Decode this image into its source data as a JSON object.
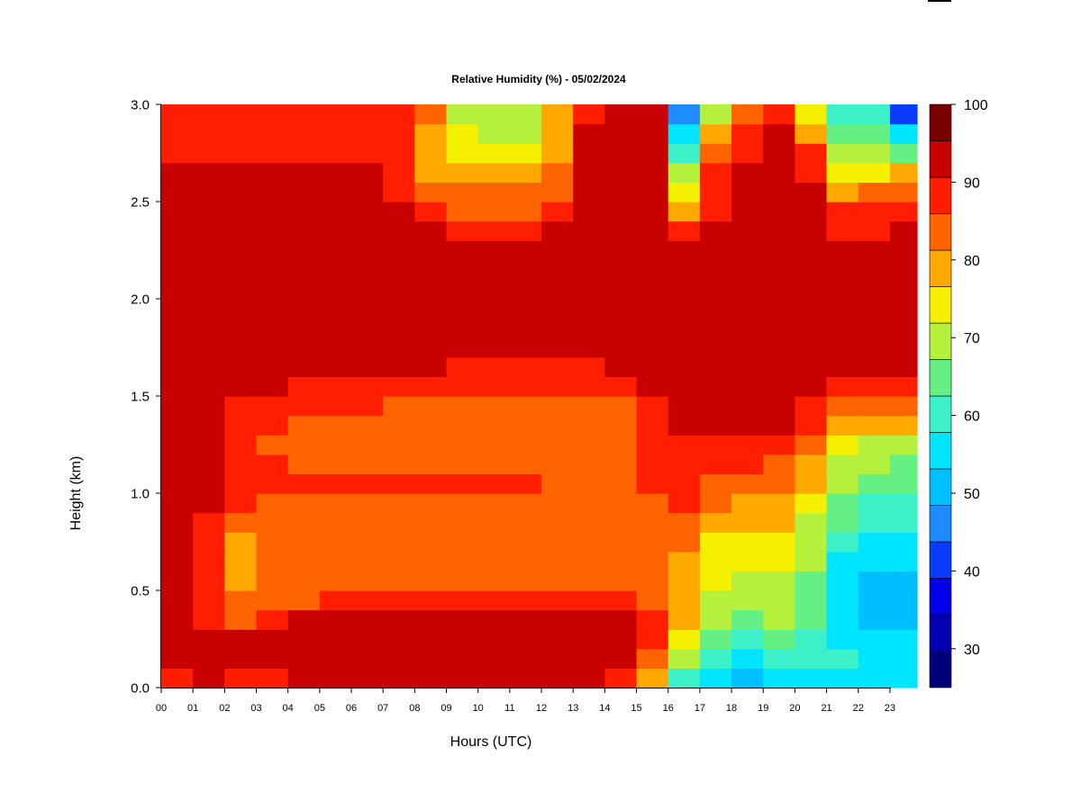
{
  "chart_data": {
    "type": "heatmap",
    "title": "Relative Humidity (%) - 05/02/2024",
    "xlabel": "Hours (UTC)",
    "ylabel": "Height (km)",
    "x_ticks": [
      "00",
      "01",
      "02",
      "03",
      "04",
      "05",
      "06",
      "07",
      "08",
      "09",
      "10",
      "11",
      "12",
      "13",
      "14",
      "15",
      "16",
      "17",
      "18",
      "19",
      "20",
      "21",
      "22",
      "23"
    ],
    "xlim": [
      0,
      24
    ],
    "y_ticks": [
      "0.0",
      "0.5",
      "1.0",
      "1.5",
      "2.0",
      "2.5",
      "3.0"
    ],
    "ylim": [
      0,
      3
    ],
    "colorbar": {
      "ticks": [
        "100",
        "90",
        "80",
        "70",
        "60",
        "50",
        "40",
        "30"
      ],
      "range": [
        25,
        100
      ],
      "step": 5,
      "colors": [
        "#00007a",
        "#0000b0",
        "#0000e6",
        "#0a3cff",
        "#1e8cff",
        "#00bfff",
        "#00e5ff",
        "#3cf0c8",
        "#64f082",
        "#b4f03c",
        "#f5f000",
        "#ffa800",
        "#ff6400",
        "#ff1e00",
        "#c80000",
        "#7a0000"
      ]
    },
    "hours": [
      0,
      1,
      2,
      3,
      4,
      5,
      6,
      7,
      8,
      9,
      10,
      11,
      12,
      13,
      14,
      15,
      16,
      17,
      18,
      19,
      20,
      21,
      22,
      23
    ],
    "heights_km": [
      0.05,
      0.15,
      0.25,
      0.35,
      0.45,
      0.55,
      0.65,
      0.75,
      0.85,
      0.95,
      1.05,
      1.15,
      1.25,
      1.35,
      1.45,
      1.55,
      1.65,
      1.75,
      1.85,
      1.95,
      2.05,
      2.15,
      2.25,
      2.35,
      2.45,
      2.55,
      2.65,
      2.75,
      2.85,
      2.95
    ],
    "rh_percent": [
      [
        93,
        98,
        99,
        99,
        99,
        99,
        99,
        99,
        99,
        99,
        99,
        99,
        99,
        99,
        99,
        99,
        99,
        99,
        99,
        99,
        99,
        99,
        99,
        99,
        99,
        99,
        96,
        94,
        93,
        92
      ],
      [
        97,
        99,
        99,
        92,
        90,
        90,
        92,
        92,
        93,
        95,
        97,
        98,
        98,
        99,
        99,
        99,
        99,
        99,
        99,
        99,
        99,
        99,
        99,
        99,
        99,
        99,
        98,
        94,
        93,
        92
      ],
      [
        94,
        96,
        96,
        87,
        86,
        84,
        82,
        84,
        86,
        90,
        92,
        94,
        94,
        93,
        93,
        96,
        99,
        99,
        99,
        99,
        99,
        99,
        99,
        99,
        98,
        96,
        95,
        92,
        91,
        90
      ],
      [
        94,
        99,
        99,
        92,
        88,
        86,
        88,
        88,
        87,
        88,
        91,
        90,
        89,
        90,
        90,
        95,
        98,
        98,
        99,
        99,
        99,
        99,
        99,
        98,
        98,
        97,
        95,
        93,
        92,
        91
      ],
      [
        95,
        99,
        99,
        96,
        89,
        88,
        88,
        88,
        88,
        88,
        90,
        88,
        88,
        89,
        90,
        94,
        97,
        97,
        98,
        99,
        99,
        99,
        99,
        98,
        97,
        96,
        95,
        93,
        92,
        91
      ],
      [
        95,
        99,
        99,
        96,
        90,
        88,
        88,
        88,
        88,
        88,
        90,
        89,
        88,
        89,
        90,
        94,
        95,
        96,
        97,
        99,
        99,
        99,
        99,
        98,
        97,
        96,
        95,
        92,
        91,
        90
      ],
      [
        96,
        99,
        99,
        96,
        90,
        89,
        88,
        88,
        89,
        88,
        90,
        89,
        88,
        88,
        90,
        93,
        95,
        96,
        97,
        99,
        99,
        99,
        99,
        98,
        97,
        96,
        95,
        92,
        91,
        90
      ],
      [
        96,
        99,
        99,
        96,
        90,
        89,
        88,
        88,
        89,
        88,
        90,
        89,
        88,
        88,
        89,
        93,
        95,
        96,
        97,
        99,
        99,
        99,
        98,
        97,
        95,
        92,
        92,
        91,
        91,
        90
      ],
      [
        96,
        99,
        99,
        96,
        91,
        89,
        89,
        88,
        88,
        87,
        90,
        88,
        88,
        88,
        88,
        92,
        95,
        96,
        96,
        99,
        99,
        99,
        98,
        96,
        90,
        87,
        83,
        82,
        84,
        87
      ],
      [
        96,
        99,
        99,
        96,
        91,
        88,
        88,
        88,
        87,
        86,
        90,
        88,
        88,
        88,
        88,
        91,
        94,
        95,
        96,
        99,
        99,
        99,
        96,
        94,
        89,
        85,
        80,
        77,
        76,
        74
      ],
      [
        96,
        99,
        99,
        95,
        91,
        88,
        88,
        88,
        88,
        87,
        90,
        88,
        88,
        88,
        88,
        91,
        94,
        95,
        96,
        99,
        99,
        99,
        96,
        94,
        89,
        85,
        80,
        76,
        74,
        74
      ],
      [
        96,
        99,
        99,
        95,
        91,
        88,
        88,
        88,
        88,
        87,
        90,
        88,
        88,
        88,
        88,
        91,
        94,
        95,
        96,
        99,
        99,
        99,
        97,
        94,
        89,
        85,
        80,
        76,
        74,
        72
      ],
      [
        96,
        99,
        98,
        95,
        91,
        88,
        88,
        88,
        88,
        87,
        89,
        88,
        88,
        88,
        88,
        91,
        94,
        95,
        96,
        98,
        99,
        99,
        98,
        95,
        90,
        88,
        86,
        84,
        83,
        82
      ],
      [
        96,
        99,
        98,
        95,
        91,
        88,
        88,
        88,
        88,
        87,
        89,
        88,
        88,
        88,
        88,
        91,
        94,
        95,
        96,
        99,
        99,
        99,
        99,
        98,
        96,
        96,
        96,
        95,
        95,
        94
      ],
      [
        92,
        98,
        97,
        95,
        91,
        88,
        88,
        88,
        88,
        87,
        89,
        88,
        88,
        88,
        88,
        91,
        95,
        96,
        97,
        99,
        99,
        99,
        99,
        99,
        99,
        98,
        98,
        97,
        97,
        96
      ],
      [
        82,
        88,
        92,
        93,
        88,
        87,
        88,
        88,
        88,
        88,
        90,
        90,
        91,
        93,
        94,
        95,
        97,
        98,
        99,
        99,
        99,
        99,
        99,
        99,
        99,
        98,
        97,
        96,
        96,
        95
      ],
      [
        64,
        70,
        76,
        80,
        82,
        82,
        84,
        86,
        88,
        90,
        92,
        93,
        94,
        95,
        97,
        99,
        99,
        99,
        99,
        99,
        99,
        99,
        96,
        90,
        84,
        78,
        72,
        64,
        55,
        48
      ],
      [
        56,
        60,
        66,
        70,
        73,
        75,
        77,
        79,
        83,
        86,
        89,
        91,
        93,
        95,
        97,
        99,
        99,
        99,
        99,
        99,
        99,
        99,
        99,
        97,
        94,
        92,
        90,
        86,
        82,
        74
      ],
      [
        52,
        58,
        64,
        68,
        71,
        73,
        75,
        77,
        80,
        84,
        88,
        91,
        93,
        95,
        96,
        99,
        99,
        99,
        99,
        99,
        99,
        99,
        99,
        99,
        98,
        97,
        96,
        94,
        92,
        88
      ],
      [
        56,
        62,
        66,
        70,
        72,
        74,
        76,
        78,
        80,
        82,
        86,
        89,
        92,
        95,
        96,
        98,
        99,
        99,
        99,
        99,
        99,
        99,
        99,
        99,
        99,
        99,
        99,
        98,
        96,
        92
      ],
      [
        58,
        62,
        64,
        66,
        66,
        68,
        70,
        72,
        74,
        76,
        80,
        84,
        88,
        92,
        94,
        96,
        99,
        99,
        99,
        99,
        99,
        99,
        99,
        99,
        98,
        97,
        94,
        90,
        84,
        78
      ],
      [
        58,
        60,
        58,
        56,
        56,
        56,
        58,
        62,
        66,
        68,
        70,
        72,
        76,
        84,
        88,
        92,
        99,
        99,
        99,
        99,
        99,
        99,
        98,
        94,
        90,
        84,
        77,
        73,
        68,
        64
      ],
      [
        58,
        58,
        56,
        54,
        54,
        54,
        56,
        58,
        60,
        63,
        66,
        70,
        74,
        82,
        86,
        90,
        99,
        99,
        99,
        99,
        99,
        99,
        97,
        93,
        90,
        86,
        79,
        74,
        68,
        64
      ],
      [
        58,
        58,
        56,
        54,
        54,
        54,
        56,
        58,
        60,
        63,
        65,
        68,
        72,
        80,
        86,
        90,
        99,
        99,
        99,
        99,
        99,
        99,
        98,
        95,
        92,
        88,
        80,
        68,
        55,
        44
      ]
    ]
  }
}
